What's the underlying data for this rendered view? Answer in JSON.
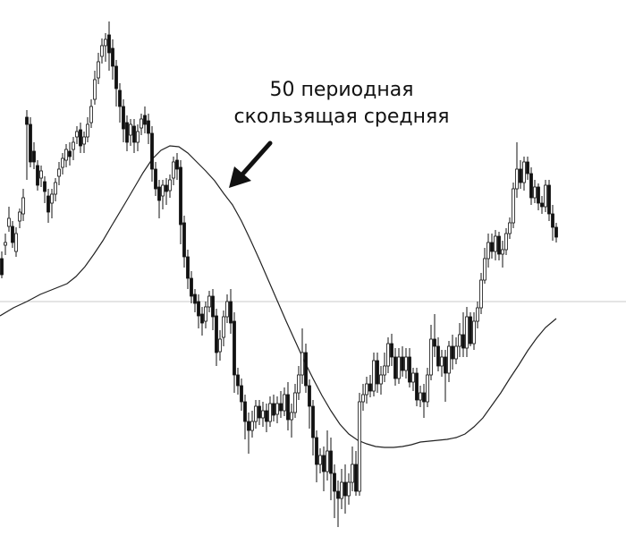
{
  "chart_data": {
    "type": "candlestick",
    "title": "",
    "xlabel": "",
    "ylabel": "",
    "grid": false,
    "legend": "none",
    "axes_visible": false,
    "ylim": [
      0,
      599
    ],
    "reference_line": {
      "value": 262,
      "color": "#c8c8c8"
    },
    "annotation": {
      "line1": "50 периодная",
      "line2": "скользящая средняя",
      "arrow_from": [
        42,
        160
      ],
      "arrow_to": [
        37,
        190
      ]
    },
    "colors": {
      "up": "#ffffff",
      "down": "#111111",
      "wick": "#111111",
      "ma": "#222222"
    },
    "moving_average": {
      "period": 50,
      "x": [
        0,
        15,
        30,
        45,
        60,
        75,
        85,
        95,
        105,
        115,
        125,
        140,
        150,
        160,
        170,
        180,
        190,
        200,
        210,
        220,
        230,
        240,
        250,
        260,
        270,
        280,
        290,
        300,
        310,
        320,
        330,
        340,
        350,
        360,
        370,
        380,
        390,
        400,
        410,
        420,
        430,
        440,
        450,
        460,
        470,
        480,
        490,
        500,
        510,
        520,
        530,
        540,
        550,
        560,
        570,
        580,
        590,
        600,
        610,
        622
      ],
      "y": [
        246,
        255,
        262,
        270,
        276,
        282,
        290,
        301,
        315,
        330,
        347,
        372,
        389,
        406,
        421,
        431,
        436,
        435,
        428,
        418,
        408,
        397,
        383,
        370,
        352,
        331,
        309,
        286,
        263,
        240,
        218,
        196,
        176,
        157,
        140,
        125,
        114,
        107,
        103,
        100,
        99,
        99,
        100,
        102,
        105,
        106,
        107,
        108,
        110,
        114,
        122,
        132,
        146,
        160,
        176,
        191,
        207,
        221,
        233,
        243
      ]
    },
    "candles": [
      [
        2,
        310,
        292,
        288,
        318
      ],
      [
        6,
        325,
        328,
        314,
        338
      ],
      [
        10,
        346,
        355,
        340,
        368
      ],
      [
        14,
        346,
        328,
        322,
        352
      ],
      [
        18,
        318,
        338,
        312,
        345
      ],
      [
        22,
        352,
        362,
        344,
        366
      ],
      [
        26,
        360,
        378,
        352,
        388
      ],
      [
        30,
        468,
        460,
        398,
        476
      ],
      [
        34,
        460,
        418,
        412,
        468
      ],
      [
        38,
        430,
        418,
        410,
        440
      ],
      [
        42,
        414,
        392,
        386,
        420
      ],
      [
        46,
        400,
        408,
        390,
        414
      ],
      [
        50,
        396,
        385,
        372,
        402
      ],
      [
        54,
        380,
        362,
        350,
        388
      ],
      [
        58,
        372,
        382,
        355,
        388
      ],
      [
        62,
        382,
        395,
        374,
        400
      ],
      [
        66,
        402,
        410,
        392,
        418
      ],
      [
        70,
        412,
        422,
        404,
        428
      ],
      [
        74,
        420,
        432,
        412,
        438
      ],
      [
        78,
        430,
        424,
        414,
        440
      ],
      [
        82,
        432,
        440,
        420,
        446
      ],
      [
        86,
        446,
        452,
        438,
        458
      ],
      [
        90,
        454,
        436,
        428,
        462
      ],
      [
        94,
        438,
        446,
        428,
        452
      ],
      [
        98,
        446,
        460,
        440,
        468
      ],
      [
        102,
        462,
        480,
        456,
        488
      ],
      [
        106,
        488,
        510,
        482,
        520
      ],
      [
        110,
        512,
        530,
        505,
        540
      ],
      [
        114,
        536,
        548,
        528,
        556
      ],
      [
        118,
        548,
        555,
        530,
        562
      ],
      [
        122,
        560,
        540,
        520,
        575
      ],
      [
        126,
        545,
        525,
        510,
        555
      ],
      [
        130,
        525,
        500,
        480,
        532
      ],
      [
        134,
        498,
        480,
        462,
        506
      ],
      [
        138,
        480,
        455,
        440,
        488
      ],
      [
        142,
        462,
        440,
        430,
        470
      ],
      [
        146,
        448,
        460,
        436,
        466
      ],
      [
        150,
        458,
        440,
        428,
        466
      ],
      [
        154,
        440,
        452,
        430,
        460
      ],
      [
        158,
        456,
        466,
        448,
        472
      ],
      [
        162,
        470,
        460,
        450,
        480
      ],
      [
        166,
        464,
        450,
        438,
        472
      ],
      [
        170,
        450,
        410,
        396,
        458
      ],
      [
        174,
        410,
        388,
        380,
        418
      ],
      [
        178,
        390,
        375,
        355,
        398
      ],
      [
        182,
        380,
        392,
        365,
        398
      ],
      [
        186,
        392,
        385,
        370,
        400
      ],
      [
        190,
        386,
        398,
        378,
        404
      ],
      [
        194,
        400,
        418,
        392,
        424
      ],
      [
        198,
        420,
        410,
        398,
        428
      ],
      [
        202,
        412,
        348,
        326,
        420
      ],
      [
        206,
        350,
        312,
        300,
        358
      ],
      [
        210,
        312,
        288,
        276,
        320
      ],
      [
        214,
        288,
        268,
        260,
        296
      ],
      [
        218,
        270,
        260,
        250,
        276
      ],
      [
        222,
        262,
        246,
        232,
        270
      ],
      [
        226,
        248,
        238,
        224,
        256
      ],
      [
        230,
        240,
        256,
        232,
        262
      ],
      [
        234,
        256,
        268,
        250,
        274
      ],
      [
        238,
        268,
        245,
        230,
        276
      ],
      [
        242,
        246,
        205,
        190,
        254
      ],
      [
        246,
        206,
        220,
        196,
        230
      ],
      [
        250,
        222,
        245,
        212,
        252
      ],
      [
        254,
        245,
        262,
        238,
        270
      ],
      [
        258,
        262,
        238,
        226,
        276
      ],
      [
        262,
        240,
        180,
        160,
        250
      ],
      [
        266,
        180,
        168,
        158,
        188
      ],
      [
        270,
        168,
        150,
        140,
        176
      ],
      [
        274,
        150,
        128,
        108,
        158
      ],
      [
        278,
        128,
        118,
        92,
        138
      ],
      [
        282,
        118,
        128,
        110,
        140
      ],
      [
        286,
        128,
        145,
        120,
        152
      ],
      [
        290,
        145,
        132,
        124,
        152
      ],
      [
        294,
        132,
        140,
        122,
        150
      ],
      [
        298,
        140,
        128,
        116,
        148
      ],
      [
        302,
        128,
        148,
        122,
        156
      ],
      [
        306,
        148,
        135,
        128,
        158
      ],
      [
        310,
        136,
        148,
        126,
        156
      ],
      [
        314,
        148,
        140,
        132,
        162
      ],
      [
        318,
        140,
        158,
        134,
        166
      ],
      [
        322,
        158,
        130,
        118,
        172
      ],
      [
        326,
        130,
        138,
        110,
        148
      ],
      [
        330,
        138,
        160,
        132,
        170
      ],
      [
        334,
        160,
        180,
        152,
        190
      ],
      [
        338,
        180,
        205,
        170,
        232
      ],
      [
        342,
        205,
        168,
        160,
        215
      ],
      [
        346,
        168,
        145,
        120,
        175
      ],
      [
        350,
        145,
        110,
        90,
        152
      ],
      [
        354,
        110,
        80,
        60,
        118
      ],
      [
        358,
        80,
        90,
        70,
        98
      ],
      [
        362,
        90,
        72,
        50,
        100
      ],
      [
        366,
        72,
        95,
        62,
        118
      ],
      [
        370,
        95,
        70,
        40,
        110
      ],
      [
        374,
        70,
        50,
        20,
        80
      ],
      [
        378,
        50,
        42,
        10,
        62
      ],
      [
        382,
        42,
        60,
        30,
        75
      ],
      [
        386,
        60,
        45,
        25,
        80
      ],
      [
        390,
        45,
        60,
        35,
        70
      ],
      [
        394,
        60,
        80,
        50,
        100
      ],
      [
        398,
        80,
        50,
        45,
        95
      ],
      [
        402,
        50,
        150,
        45,
        160
      ],
      [
        406,
        150,
        158,
        140,
        170
      ],
      [
        410,
        158,
        170,
        148,
        178
      ],
      [
        414,
        170,
        162,
        155,
        180
      ],
      [
        418,
        162,
        196,
        156,
        205
      ],
      [
        422,
        196,
        170,
        160,
        205
      ],
      [
        426,
        170,
        180,
        158,
        190
      ],
      [
        430,
        180,
        190,
        172,
        205
      ],
      [
        434,
        190,
        215,
        182,
        222
      ],
      [
        438,
        215,
        200,
        190,
        226
      ],
      [
        442,
        200,
        176,
        168,
        210
      ],
      [
        446,
        176,
        200,
        170,
        210
      ],
      [
        450,
        200,
        185,
        178,
        212
      ],
      [
        454,
        185,
        200,
        176,
        210
      ],
      [
        458,
        200,
        172,
        166,
        210
      ],
      [
        462,
        172,
        182,
        162,
        188
      ],
      [
        466,
        182,
        152,
        145,
        188
      ],
      [
        470,
        152,
        160,
        144,
        168
      ],
      [
        474,
        160,
        150,
        132,
        170
      ],
      [
        478,
        150,
        180,
        144,
        188
      ],
      [
        482,
        180,
        220,
        174,
        236
      ],
      [
        486,
        220,
        212,
        200,
        248
      ],
      [
        490,
        212,
        190,
        184,
        222
      ],
      [
        494,
        190,
        200,
        178,
        208
      ],
      [
        498,
        200,
        182,
        150,
        208
      ],
      [
        502,
        182,
        212,
        172,
        218
      ],
      [
        506,
        212,
        198,
        186,
        225
      ],
      [
        510,
        198,
        212,
        192,
        222
      ],
      [
        514,
        212,
        225,
        200,
        238
      ],
      [
        518,
        225,
        210,
        200,
        250
      ],
      [
        522,
        210,
        245,
        200,
        256
      ],
      [
        526,
        245,
        215,
        212,
        250
      ],
      [
        530,
        215,
        240,
        208,
        250
      ],
      [
        534,
        240,
        255,
        232,
        262
      ],
      [
        538,
        255,
        286,
        248,
        294
      ],
      [
        542,
        286,
        310,
        282,
        322
      ],
      [
        546,
        310,
        328,
        300,
        338
      ],
      [
        550,
        328,
        318,
        310,
        338
      ],
      [
        554,
        318,
        335,
        308,
        342
      ],
      [
        558,
        335,
        315,
        308,
        340
      ],
      [
        562,
        315,
        320,
        300,
        330
      ],
      [
        566,
        320,
        338,
        314,
        344
      ],
      [
        570,
        338,
        350,
        332,
        356
      ],
      [
        574,
        350,
        388,
        344,
        395
      ],
      [
        578,
        388,
        410,
        378,
        440
      ],
      [
        582,
        410,
        395,
        388,
        420
      ],
      [
        586,
        395,
        418,
        386,
        424
      ],
      [
        590,
        418,
        405,
        398,
        424
      ],
      [
        594,
        405,
        378,
        370,
        412
      ],
      [
        598,
        378,
        390,
        372,
        398
      ],
      [
        602,
        390,
        372,
        364,
        394
      ],
      [
        606,
        372,
        368,
        360,
        380
      ],
      [
        610,
        368,
        392,
        362,
        398
      ],
      [
        614,
        392,
        360,
        352,
        398
      ],
      [
        618,
        360,
        345,
        330,
        370
      ],
      [
        622,
        345,
        334,
        328,
        350
      ]
    ]
  }
}
